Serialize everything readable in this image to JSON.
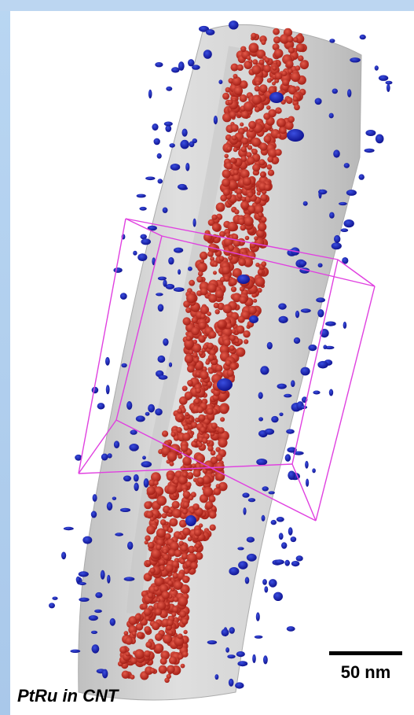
{
  "scale_bar": {
    "label": "50 nm"
  },
  "caption": {
    "text": "PtRu in CNT"
  },
  "colors": {
    "nanotube": "#d4d4d4",
    "particles_inside": "#c0231a",
    "particles_outside": "#1a1aa8",
    "bounding_box": "#e040e0",
    "frame": "#bcd6f1"
  }
}
